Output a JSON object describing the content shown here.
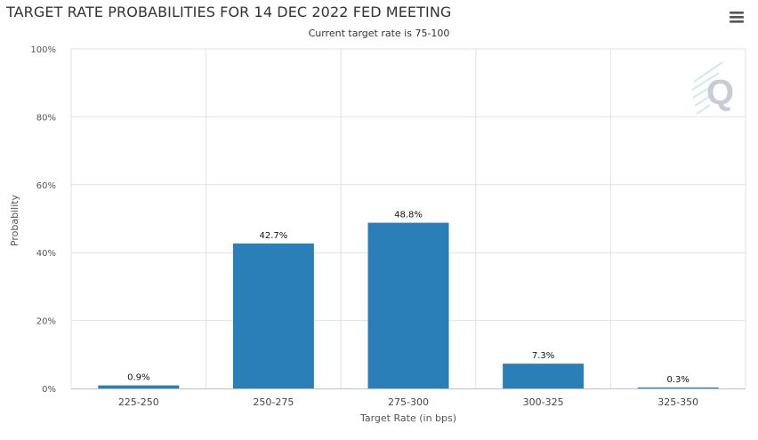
{
  "header": {
    "title": "TARGET RATE PROBABILITIES FOR 14 DEC 2022 FED MEETING",
    "subtitle": "Current target rate is 75-100",
    "menu_icon": "hamburger-menu-icon",
    "watermark_icon": "q-logo-icon"
  },
  "colors": {
    "bar": "#2a7fb8",
    "grid": "#e2e2e2",
    "axis": "#c0c0c0",
    "watermark": "#c9d7e6"
  },
  "chart_data": {
    "type": "bar",
    "title": "TARGET RATE PROBABILITIES FOR 14 DEC 2022 FED MEETING",
    "subtitle": "Current target rate is 75-100",
    "xlabel": "Target Rate (in bps)",
    "ylabel": "Probability",
    "categories": [
      "225-250",
      "250-275",
      "275-300",
      "300-325",
      "325-350"
    ],
    "values": [
      0.9,
      42.7,
      48.8,
      7.3,
      0.3
    ],
    "data_labels": [
      "0.9%",
      "42.7%",
      "48.8%",
      "7.3%",
      "0.3%"
    ],
    "ylim": [
      0,
      100
    ],
    "yticks": [
      0,
      20,
      40,
      60,
      80,
      100
    ],
    "ytick_labels": [
      "0%",
      "20%",
      "40%",
      "60%",
      "80%",
      "100%"
    ],
    "grid": true,
    "legend": "none"
  }
}
